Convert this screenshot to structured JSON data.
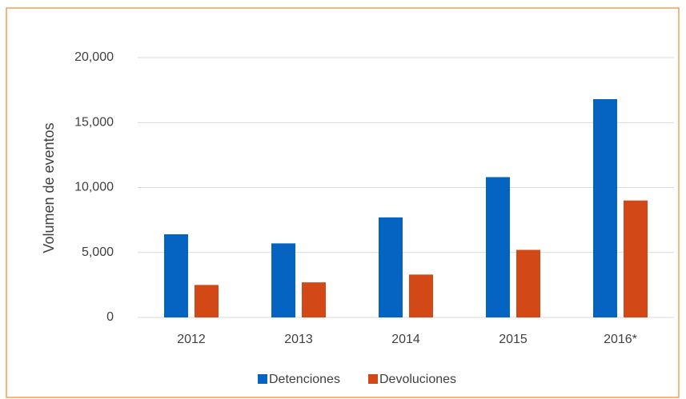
{
  "chart_data": {
    "type": "bar",
    "y_label": "Volumen de eventos",
    "categories": [
      "2012",
      "2013",
      "2014",
      "2015",
      "2016*"
    ],
    "series": [
      {
        "name": "Detenciones",
        "color": "#0563c1",
        "values": [
          6400,
          5700,
          7700,
          10800,
          16800
        ]
      },
      {
        "name": "Devoluciones",
        "color": "#d34817",
        "values": [
          2500,
          2700,
          3300,
          5200,
          9000
        ]
      }
    ],
    "ylim": [
      0,
      20000
    ],
    "yticks": [
      0,
      {
        "value": 5000,
        "label": "5,000"
      },
      {
        "value": 10000,
        "label": "10,000"
      },
      {
        "value": 15000,
        "label": "15,000"
      },
      {
        "value": 20000,
        "label": "20,000"
      }
    ],
    "grid": true,
    "legend": "bottom"
  }
}
